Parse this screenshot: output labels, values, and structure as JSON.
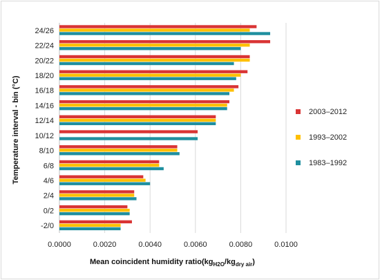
{
  "chart_data": {
    "type": "bar",
    "orientation": "horizontal",
    "categories": [
      "24/26",
      "22/24",
      "20/22",
      "18/20",
      "16/18",
      "14/16",
      "12/14",
      "10/12",
      "8/10",
      "6/8",
      "4/6",
      "2/4",
      "0/2",
      "-2/0"
    ],
    "series": [
      {
        "name": "2003–2012",
        "color": "#d93434",
        "values": [
          0.0087,
          0.0093,
          0.0084,
          0.0083,
          0.0079,
          0.0075,
          0.0069,
          0.0061,
          0.0052,
          0.0044,
          0.0037,
          0.0033,
          0.003,
          0.0032
        ]
      },
      {
        "name": "1993–2002",
        "color": "#ffc000",
        "values": [
          0.0084,
          0.0084,
          0.0084,
          0.008,
          0.0077,
          0.0074,
          0.0069,
          null,
          0.0052,
          0.0044,
          0.0038,
          0.0033,
          0.0031,
          0.0027
        ]
      },
      {
        "name": "1983–1992",
        "color": "#1f8f9f",
        "values": [
          0.0093,
          0.008,
          0.0077,
          0.0078,
          0.0075,
          0.0074,
          0.0069,
          0.0061,
          0.0053,
          0.0046,
          0.004,
          0.0034,
          0.0031,
          0.0027
        ]
      }
    ],
    "xlim": [
      0,
      0.01
    ],
    "xticks": [
      "0.0000",
      "0.0020",
      "0.0040",
      "0.0060",
      "0.0080",
      "0.0100"
    ],
    "ylabel": "Temperature interval - bin (°C)",
    "xlabel_main": "Mean coincident humidity ratio(kg",
    "xlabel_sub1": "H2O",
    "xlabel_mid": "/kg",
    "xlabel_sub2": "dry  air",
    "xlabel_end": ")",
    "grid": "vertical",
    "legend": "right"
  }
}
